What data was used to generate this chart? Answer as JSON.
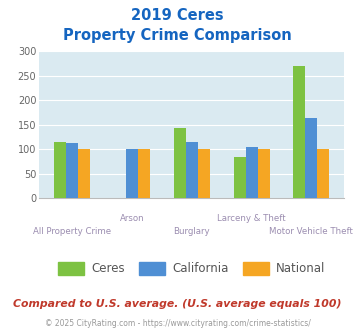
{
  "title_line1": "2019 Ceres",
  "title_line2": "Property Crime Comparison",
  "categories": [
    "All Property Crime",
    "Arson",
    "Burglary",
    "Larceny & Theft",
    "Motor Vehicle Theft"
  ],
  "series": {
    "Ceres": [
      115,
      0,
      143,
      83,
      269
    ],
    "California": [
      112,
      101,
      115,
      104,
      163
    ],
    "National": [
      101,
      101,
      101,
      101,
      101
    ]
  },
  "colors": {
    "Ceres": "#7dc242",
    "California": "#4f8fd4",
    "National": "#f5a623"
  },
  "ylim": [
    0,
    300
  ],
  "yticks": [
    0,
    50,
    100,
    150,
    200,
    250,
    300
  ],
  "plot_bg": "#daeaf1",
  "title_color": "#1565c0",
  "xlabel_color": "#9b8db0",
  "legend_text_color": "#555555",
  "footer_text": "Compared to U.S. average. (U.S. average equals 100)",
  "footer_color": "#c0392b",
  "copyright_text": "© 2025 CityRating.com - https://www.cityrating.com/crime-statistics/",
  "copyright_color": "#999999",
  "bar_width": 0.2
}
